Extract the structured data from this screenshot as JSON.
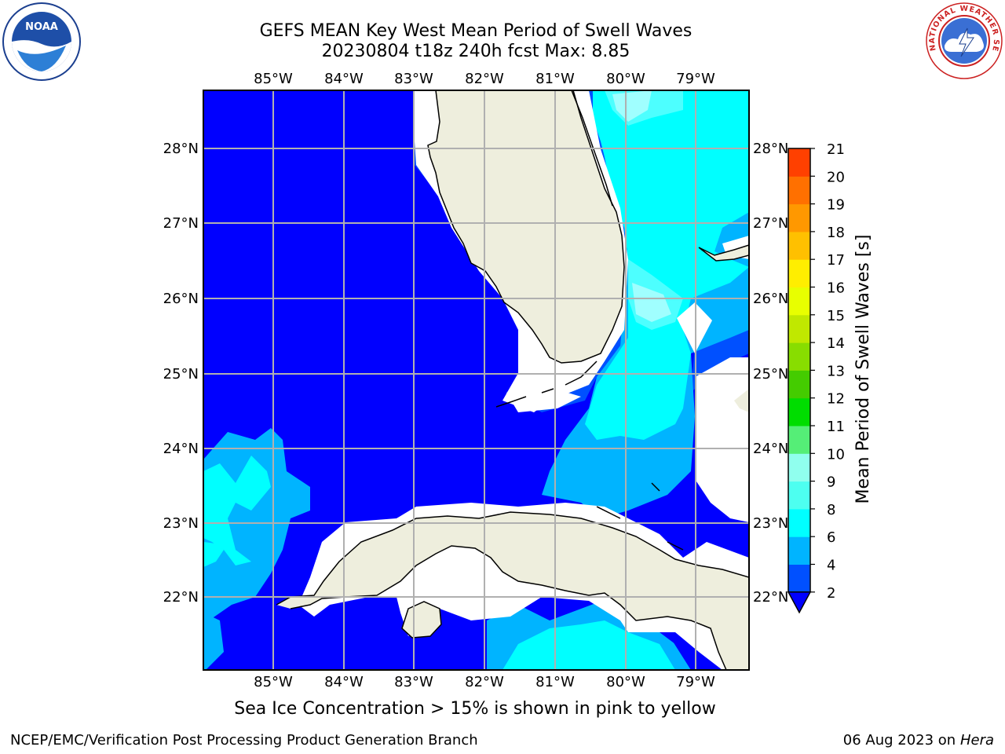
{
  "title_line1": "GEFS MEAN Key West Mean Period of Swell Waves",
  "title_line2": "20230804 t18z 240h fcst   Max: 8.85",
  "map": {
    "lon_labels": [
      "85°W",
      "84°W",
      "83°W",
      "82°W",
      "81°W",
      "80°W",
      "79°W"
    ],
    "lat_labels": [
      "28°N",
      "27°N",
      "26°N",
      "25°N",
      "24°N",
      "23°N",
      "22°N"
    ],
    "lon_range": [
      -86.0,
      -78.25
    ],
    "lat_range": [
      21.1,
      28.75
    ]
  },
  "colorbar": {
    "label": "Mean Period of Swell Waves [s]",
    "ticks": [
      "2",
      "4",
      "6",
      "8",
      "9",
      "10",
      "11",
      "12",
      "13",
      "14",
      "15",
      "16",
      "17",
      "18",
      "19",
      "20",
      "21"
    ],
    "colors": [
      "#0050ff",
      "#00b4ff",
      "#00ffff",
      "#4dfff0",
      "#90ffee",
      "#55ee77",
      "#00dd00",
      "#44cc00",
      "#88dd00",
      "#c0e800",
      "#e8ff00",
      "#ffee00",
      "#ffc000",
      "#ff9800",
      "#ff7000",
      "#ff4000",
      "#ff0000"
    ],
    "extend_color": "#0000ff"
  },
  "field_colors": {
    "below_2": "#0000ff",
    "2_4": "#0050ff",
    "4_6": "#00b4ff",
    "6_8": "#00ffff",
    "8_9": "#4dffff",
    "9_10": "#a0ffff",
    "land": "#eeeedd",
    "masked": "#ffffff"
  },
  "note": "Sea Ice Concentration > 15% is shown in pink to yellow",
  "footer_left": "NCEP/EMC/Verification Post Processing Product Generation Branch",
  "footer_date": "06 Aug 2023 on",
  "footer_host": "Hera",
  "logos": {
    "noaa_text": "NOAA",
    "nws_text": "NATIONAL WEATHER SERVICE"
  }
}
